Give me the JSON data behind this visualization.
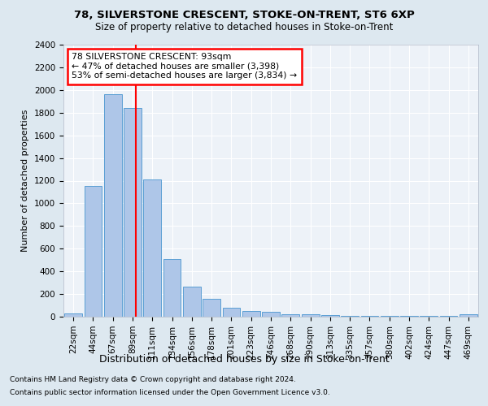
{
  "title1": "78, SILVERSTONE CRESCENT, STOKE-ON-TRENT, ST6 6XP",
  "title2": "Size of property relative to detached houses in Stoke-on-Trent",
  "xlabel": "Distribution of detached houses by size in Stoke-on-Trent",
  "ylabel": "Number of detached properties",
  "categories": [
    "22sqm",
    "44sqm",
    "67sqm",
    "89sqm",
    "111sqm",
    "134sqm",
    "156sqm",
    "178sqm",
    "201sqm",
    "223sqm",
    "246sqm",
    "268sqm",
    "290sqm",
    "313sqm",
    "335sqm",
    "357sqm",
    "380sqm",
    "402sqm",
    "424sqm",
    "447sqm",
    "469sqm"
  ],
  "values": [
    30,
    1150,
    1960,
    1840,
    1210,
    510,
    265,
    155,
    80,
    50,
    45,
    25,
    20,
    15,
    10,
    10,
    5,
    5,
    5,
    5,
    20
  ],
  "bar_color": "#aec6e8",
  "bar_edge_color": "#5a9fd4",
  "annotation_text": "78 SILVERSTONE CRESCENT: 93sqm\n← 47% of detached houses are smaller (3,398)\n53% of semi-detached houses are larger (3,834) →",
  "annotation_box_color": "white",
  "annotation_box_edge_color": "red",
  "vline_color": "red",
  "vline_x": 3.18,
  "ylim": [
    0,
    2400
  ],
  "yticks": [
    0,
    200,
    400,
    600,
    800,
    1000,
    1200,
    1400,
    1600,
    1800,
    2000,
    2200,
    2400
  ],
  "footer1": "Contains HM Land Registry data © Crown copyright and database right 2024.",
  "footer2": "Contains public sector information licensed under the Open Government Licence v3.0.",
  "bg_color": "#dde8f0",
  "plot_bg_color": "#edf2f8",
  "title1_fontsize": 9.5,
  "title2_fontsize": 8.5,
  "ylabel_fontsize": 8,
  "xlabel_fontsize": 9,
  "tick_fontsize": 7.5,
  "annotation_fontsize": 7.8,
  "footer_fontsize": 6.5
}
